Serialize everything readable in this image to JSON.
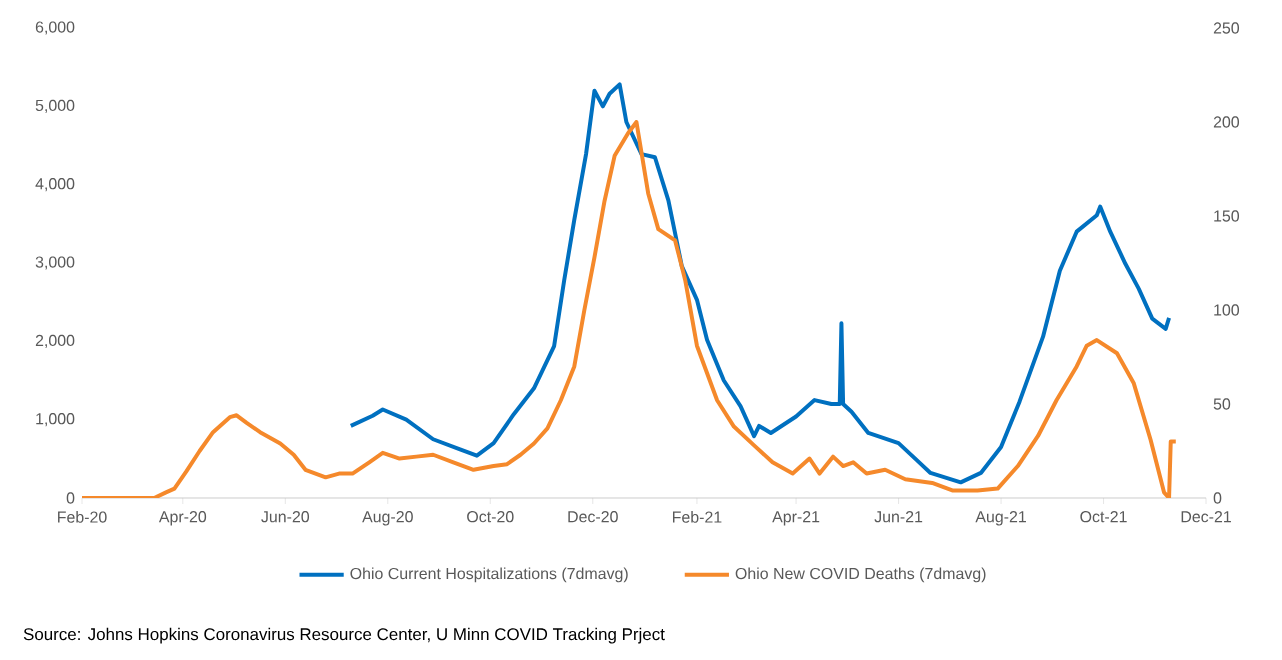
{
  "chart_data": {
    "type": "line",
    "marker": "none",
    "line_style": "solid",
    "legend": "bottom",
    "xlim": [
      "2020-02-01",
      "2021-12-01"
    ],
    "xticks": [
      {
        "value": "2020-02-01",
        "label": "Feb-20"
      },
      {
        "value": "2020-04-01",
        "label": "Apr-20"
      },
      {
        "value": "2020-06-01",
        "label": "Jun-20"
      },
      {
        "value": "2020-08-01",
        "label": "Aug-20"
      },
      {
        "value": "2020-10-01",
        "label": "Oct-20"
      },
      {
        "value": "2020-12-01",
        "label": "Dec-20"
      },
      {
        "value": "2021-02-01",
        "label": "Feb-21"
      },
      {
        "value": "2021-04-01",
        "label": "Apr-21"
      },
      {
        "value": "2021-06-01",
        "label": "Jun-21"
      },
      {
        "value": "2021-08-01",
        "label": "Aug-21"
      },
      {
        "value": "2021-10-01",
        "label": "Oct-21"
      },
      {
        "value": "2021-12-01",
        "label": "Dec-21"
      }
    ],
    "ylim": [
      0,
      6000
    ],
    "yticks": [
      0,
      {
        "value": 1000,
        "label": "1,000"
      },
      {
        "value": 2000,
        "label": "2,000"
      },
      {
        "value": 3000,
        "label": "3,000"
      },
      {
        "value": 4000,
        "label": "4,000"
      },
      {
        "value": 5000,
        "label": "5,000"
      },
      {
        "value": 6000,
        "label": "6,000"
      }
    ],
    "y2lim": [
      0,
      250
    ],
    "y2ticks": [
      0,
      50,
      100,
      150,
      200,
      250
    ],
    "annotations": [
      "Source: Johns Hopkins Coronavirus Resource Center, U Minn COVID Tracking Prject"
    ],
    "series": [
      {
        "name": "Ohio Current Hospitalizations (7dmavg)",
        "color": "#0070c0",
        "axis": "y",
        "x": [
          "2020-07-10",
          "2020-07-23",
          "2020-07-29",
          "2020-08-12",
          "2020-08-28",
          "2020-09-13",
          "2020-09-23",
          "2020-10-03",
          "2020-10-15",
          "2020-10-27",
          "2020-11-08",
          "2020-11-14",
          "2020-11-20",
          "2020-11-27",
          "2020-12-02",
          "2020-12-07",
          "2020-12-11",
          "2020-12-17",
          "2020-12-21",
          "2020-12-30",
          "2021-01-07",
          "2021-01-15",
          "2021-01-23",
          "2021-02-01",
          "2021-02-07",
          "2021-02-17",
          "2021-02-27",
          "2021-03-07",
          "2021-03-10",
          "2021-03-17",
          "2021-04-01",
          "2021-04-12",
          "2021-04-22",
          "2021-04-27",
          "2021-04-28",
          "2021-04-29",
          "2021-05-04",
          "2021-05-14",
          "2021-06-01",
          "2021-06-12",
          "2021-06-20",
          "2021-07-08",
          "2021-07-20",
          "2021-08-01",
          "2021-08-12",
          "2021-08-26",
          "2021-09-05",
          "2021-09-15",
          "2021-09-27",
          "2021-09-29",
          "2021-10-05",
          "2021-10-14",
          "2021-10-22",
          "2021-10-30",
          "2021-11-07",
          "2021-11-09"
        ],
        "values": [
          920,
          1050,
          1130,
          1000,
          750,
          620,
          540,
          700,
          1070,
          1400,
          1940,
          2780,
          3550,
          4390,
          5200,
          5000,
          5160,
          5280,
          4800,
          4390,
          4350,
          3800,
          2960,
          2530,
          2020,
          1500,
          1170,
          790,
          920,
          830,
          1040,
          1250,
          1200,
          1200,
          2230,
          1200,
          1100,
          830,
          700,
          480,
          320,
          200,
          320,
          650,
          1230,
          2060,
          2900,
          3400,
          3610,
          3720,
          3400,
          2990,
          2670,
          2290,
          2160,
          2300
        ]
      },
      {
        "name": "Ohio New COVID Deaths (7dmavg)",
        "color": "#f5892b",
        "axis": "y2",
        "x": [
          "2020-02-01",
          "2020-03-15",
          "2020-03-22",
          "2020-03-27",
          "2020-04-03",
          "2020-04-11",
          "2020-04-19",
          "2020-04-29",
          "2020-05-03",
          "2020-05-09",
          "2020-05-17",
          "2020-05-29",
          "2020-06-06",
          "2020-06-13",
          "2020-06-25",
          "2020-07-03",
          "2020-07-11",
          "2020-07-21",
          "2020-07-29",
          "2020-08-08",
          "2020-08-18",
          "2020-08-28",
          "2020-09-09",
          "2020-09-21",
          "2020-10-03",
          "2020-10-11",
          "2020-10-19",
          "2020-10-27",
          "2020-11-04",
          "2020-11-12",
          "2020-11-20",
          "2020-11-26",
          "2020-12-02",
          "2020-12-08",
          "2020-12-14",
          "2020-12-22",
          "2020-12-27",
          "2021-01-03",
          "2021-01-09",
          "2021-01-19",
          "2021-01-25",
          "2021-02-01",
          "2021-02-13",
          "2021-02-23",
          "2021-03-07",
          "2021-03-18",
          "2021-03-30",
          "2021-04-09",
          "2021-04-15",
          "2021-04-23",
          "2021-04-29",
          "2021-05-05",
          "2021-05-13",
          "2021-05-24",
          "2021-06-05",
          "2021-06-21",
          "2021-07-03",
          "2021-07-18",
          "2021-07-30",
          "2021-08-11",
          "2021-08-23",
          "2021-09-03",
          "2021-09-15",
          "2021-09-21",
          "2021-09-27",
          "2021-10-09",
          "2021-10-19",
          "2021-10-29",
          "2021-11-06",
          "2021-11-09",
          "2021-11-10",
          "2021-11-13"
        ],
        "values": [
          0,
          0,
          3,
          5,
          14,
          25,
          35,
          43,
          44,
          40,
          35,
          29,
          23,
          15,
          11,
          13,
          13,
          19,
          24,
          21,
          22,
          23,
          19,
          15,
          17,
          18,
          23,
          29,
          37,
          52,
          70,
          100,
          128,
          158,
          182,
          194,
          200,
          162,
          143,
          137,
          116,
          81,
          52,
          38,
          28,
          19,
          13,
          21,
          13,
          22,
          17,
          19,
          13,
          15,
          10,
          8,
          4,
          4,
          5,
          17,
          33,
          52,
          70,
          81,
          84,
          77,
          61,
          31,
          3,
          0,
          30,
          30
        ]
      }
    ]
  }
}
